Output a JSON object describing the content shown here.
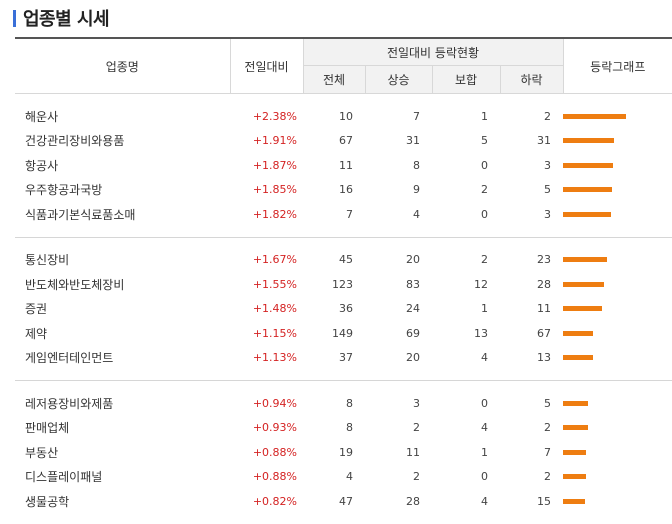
{
  "title": "업종별 시세",
  "colors": {
    "bar": "#ee7d11",
    "up": "#d42323",
    "accent": "#3a6fd8"
  },
  "headers": {
    "name": "업종명",
    "change": "전일대비",
    "group": "전일대비 등락현황",
    "total": "전체",
    "up": "상승",
    "flat": "보합",
    "down": "하락",
    "graph": "등락그래프"
  },
  "groups": [
    [
      {
        "name": "해운사",
        "change": "+2.38%",
        "total": "10",
        "up": "7",
        "flat": "1",
        "down": "2",
        "rate": 2.38
      },
      {
        "name": "건강관리장비와용품",
        "change": "+1.91%",
        "total": "67",
        "up": "31",
        "flat": "5",
        "down": "31",
        "rate": 1.91
      },
      {
        "name": "항공사",
        "change": "+1.87%",
        "total": "11",
        "up": "8",
        "flat": "0",
        "down": "3",
        "rate": 1.87
      },
      {
        "name": "우주항공과국방",
        "change": "+1.85%",
        "total": "16",
        "up": "9",
        "flat": "2",
        "down": "5",
        "rate": 1.85
      },
      {
        "name": "식품과기본식료품소매",
        "change": "+1.82%",
        "total": "7",
        "up": "4",
        "flat": "0",
        "down": "3",
        "rate": 1.82
      }
    ],
    [
      {
        "name": "통신장비",
        "change": "+1.67%",
        "total": "45",
        "up": "20",
        "flat": "2",
        "down": "23",
        "rate": 1.67
      },
      {
        "name": "반도체와반도체장비",
        "change": "+1.55%",
        "total": "123",
        "up": "83",
        "flat": "12",
        "down": "28",
        "rate": 1.55
      },
      {
        "name": "증권",
        "change": "+1.48%",
        "total": "36",
        "up": "24",
        "flat": "1",
        "down": "11",
        "rate": 1.48
      },
      {
        "name": "제약",
        "change": "+1.15%",
        "total": "149",
        "up": "69",
        "flat": "13",
        "down": "67",
        "rate": 1.15
      },
      {
        "name": "게임엔터테인먼트",
        "change": "+1.13%",
        "total": "37",
        "up": "20",
        "flat": "4",
        "down": "13",
        "rate": 1.13
      }
    ],
    [
      {
        "name": "레저용장비와제품",
        "change": "+0.94%",
        "total": "8",
        "up": "3",
        "flat": "0",
        "down": "5",
        "rate": 0.94
      },
      {
        "name": "판매업체",
        "change": "+0.93%",
        "total": "8",
        "up": "2",
        "flat": "4",
        "down": "2",
        "rate": 0.93
      },
      {
        "name": "부동산",
        "change": "+0.88%",
        "total": "19",
        "up": "11",
        "flat": "1",
        "down": "7",
        "rate": 0.88
      },
      {
        "name": "디스플레이패널",
        "change": "+0.88%",
        "total": "4",
        "up": "2",
        "flat": "0",
        "down": "2",
        "rate": 0.88
      },
      {
        "name": "생물공학",
        "change": "+0.82%",
        "total": "47",
        "up": "28",
        "flat": "4",
        "down": "15",
        "rate": 0.82
      }
    ]
  ]
}
